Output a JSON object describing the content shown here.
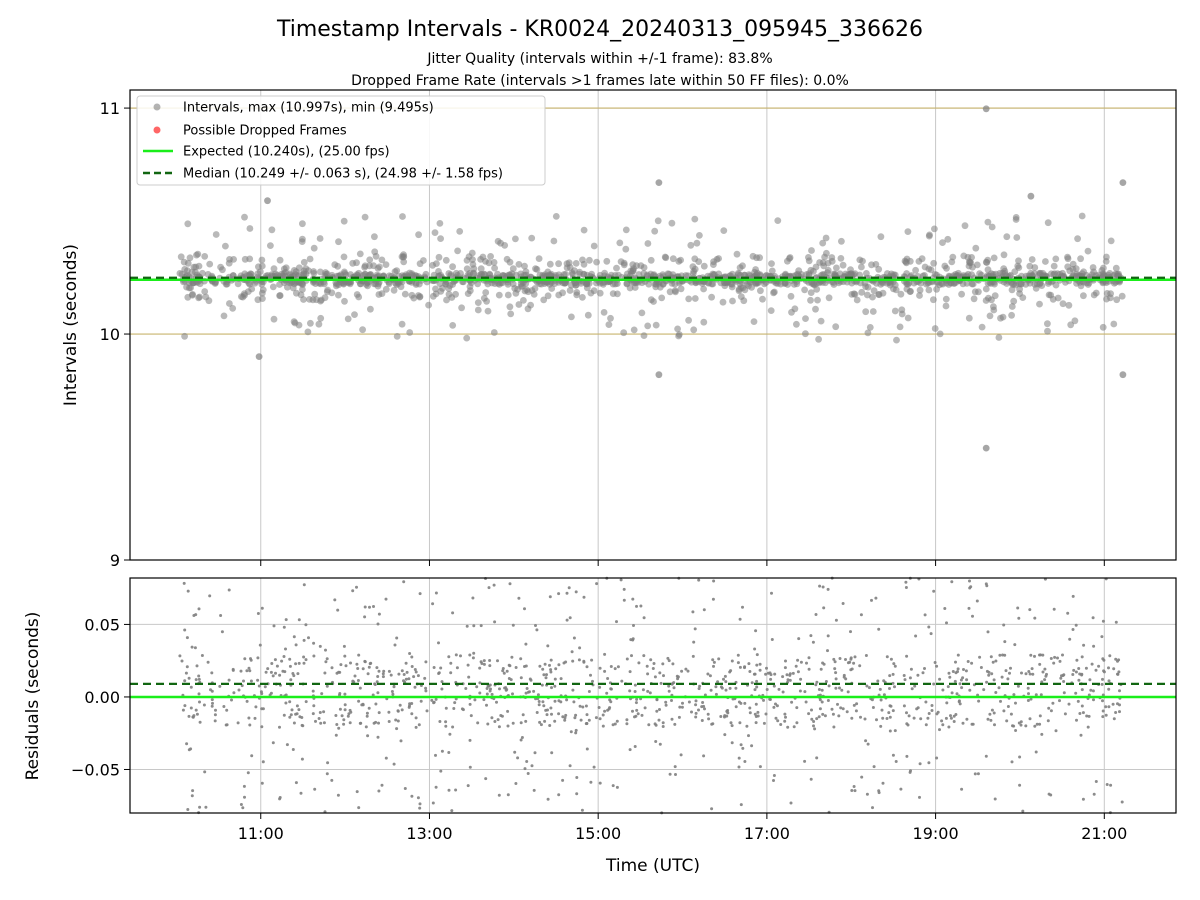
{
  "title": "Timestamp Intervals - KR0024_20240313_095945_336626",
  "subtitle_1": "Jitter Quality (intervals within +/-1 frame): 83.8%",
  "subtitle_2": "Dropped Frame Rate (intervals >1 frames late within 50 FF files): 0.0%",
  "colors": {
    "points": "#808080",
    "dropped": "#ff6666",
    "expected": "#1aee1a",
    "median": "#116611",
    "limit_lines": "#c8b46e",
    "grid": "#c8c8c8"
  },
  "chart_data": [
    {
      "type": "scatter",
      "name": "intervals",
      "ylabel": "Intervals (seconds)",
      "xlabel": "",
      "x_unit": "hours UTC",
      "xlim": [
        9.45,
        21.85
      ],
      "ylim": [
        9,
        11.08
      ],
      "yticks": [
        9,
        10,
        11
      ],
      "ytick_labels": [
        "9",
        "10",
        "11"
      ],
      "xticks": [
        11,
        13,
        15,
        17,
        19,
        21
      ],
      "grid": true,
      "legend_position": "upper-left",
      "legend": [
        {
          "label": "Intervals, max (10.997s), min (9.495s)",
          "kind": "point",
          "color": "#808080"
        },
        {
          "label": "Possible Dropped Frames",
          "kind": "point",
          "color": "#ff6666"
        },
        {
          "label": "Expected (10.240s), (25.00 fps)",
          "kind": "solid",
          "color": "#1aee1a"
        },
        {
          "label": "Median (10.249 +/- 0.063 s), (24.98 +/- 1.58 fps)",
          "kind": "dashed",
          "color": "#116611"
        }
      ],
      "expected": 10.24,
      "median": 10.249,
      "limits": [
        10.0,
        11.0
      ],
      "x_start": 10.04,
      "x_end": 21.22,
      "n_points": 1650,
      "spread": 0.063,
      "highlight_points": [
        [
          19.6,
          10.997
        ],
        [
          19.6,
          9.495
        ],
        [
          15.72,
          10.67
        ],
        [
          15.72,
          9.82
        ],
        [
          21.22,
          10.67
        ],
        [
          21.22,
          9.82
        ],
        [
          20.13,
          10.61
        ],
        [
          11.08,
          10.59
        ],
        [
          10.98,
          9.9
        ]
      ],
      "series": [
        {
          "name": "Intervals, max (10.997s), min (9.495s)",
          "values_note": ""
        },
        {
          "name": "Expected (10.240s), (25.00 fps)",
          "y": 10.24
        },
        {
          "name": "Median (10.249 +/- 0.063 s), (24.98 +/- 1.58 fps)",
          "y": 10.249
        }
      ]
    },
    {
      "type": "scatter",
      "name": "residuals",
      "ylabel": "Residuals (seconds)",
      "xlabel": "Time (UTC)",
      "x_unit": "hours UTC",
      "xlim": [
        9.45,
        21.85
      ],
      "ylim": [
        -0.08,
        0.082
      ],
      "yticks": [
        -0.05,
        0.0,
        0.05
      ],
      "ytick_labels": [
        "−0.05",
        "0.00",
        "0.05"
      ],
      "xticks": [
        11,
        13,
        15,
        17,
        19,
        21
      ],
      "xtick_labels": [
        "11:00",
        "13:00",
        "15:00",
        "17:00",
        "19:00",
        "21:00"
      ],
      "grid": true,
      "expected": 0.0,
      "median": 0.009,
      "series": [
        {
          "name": "Expected",
          "y": 0.0
        },
        {
          "name": "Median",
          "y": 0.009
        }
      ]
    }
  ]
}
